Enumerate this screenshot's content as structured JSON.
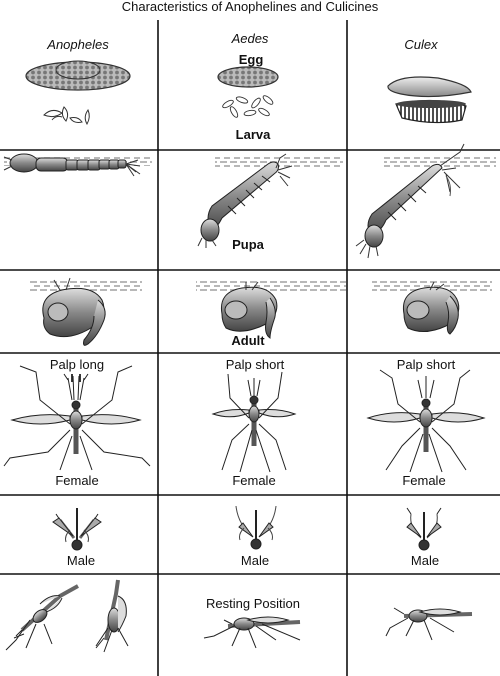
{
  "title": "Characteristics of Anophelines and Culicines",
  "columns": [
    "Anopheles",
    "Aedes",
    "Culex"
  ],
  "stages": {
    "egg": "Egg",
    "larva": "Larva",
    "pupa": "Pupa",
    "adult": "Adult"
  },
  "palps": [
    "Palp long",
    "Palp short",
    "Palp short"
  ],
  "female_labels": [
    "Female",
    "Female",
    "Female"
  ],
  "male_labels": [
    "Male",
    "Male",
    "Male"
  ],
  "resting": "Resting Position"
}
